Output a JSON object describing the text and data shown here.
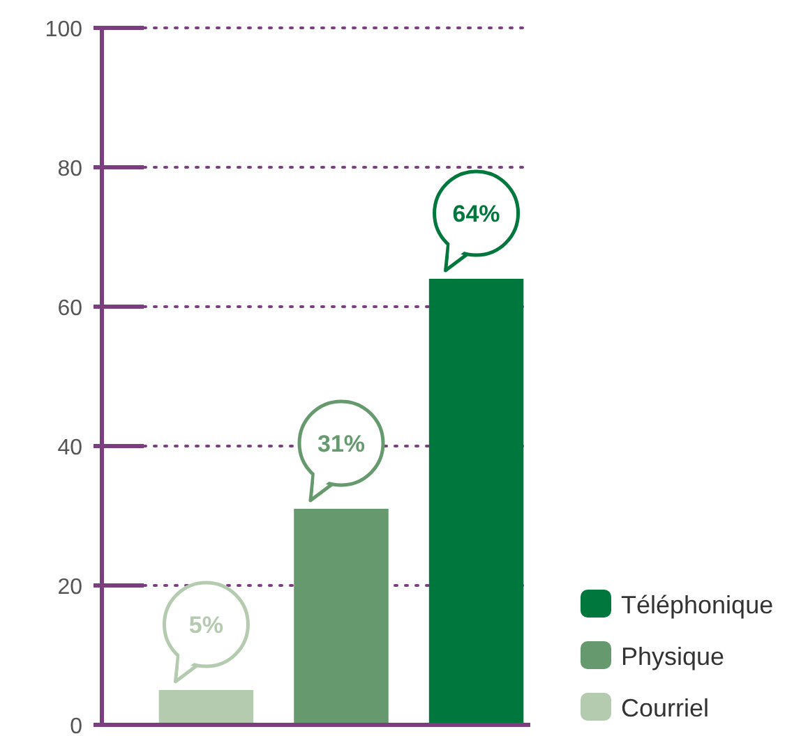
{
  "chart_data": {
    "type": "bar",
    "categories": [
      null,
      null,
      null
    ],
    "series": [
      {
        "name": "Courriel",
        "color": "#b5cbb0",
        "values": [
          5,
          null,
          null
        ],
        "value_labels": [
          "5%",
          null,
          null
        ]
      },
      {
        "name": "Physique",
        "color": "#669a6e",
        "values": [
          null,
          31,
          null
        ],
        "value_labels": [
          null,
          "31%",
          null
        ]
      },
      {
        "name": "Téléphonique",
        "color": "#00773c",
        "values": [
          null,
          null,
          64
        ],
        "value_labels": [
          null,
          null,
          "64%"
        ]
      }
    ],
    "ylim": [
      0,
      100
    ],
    "yticks": [
      0,
      20,
      40,
      60,
      80,
      100
    ],
    "grid": "y",
    "legend": "bottom right"
  }
}
